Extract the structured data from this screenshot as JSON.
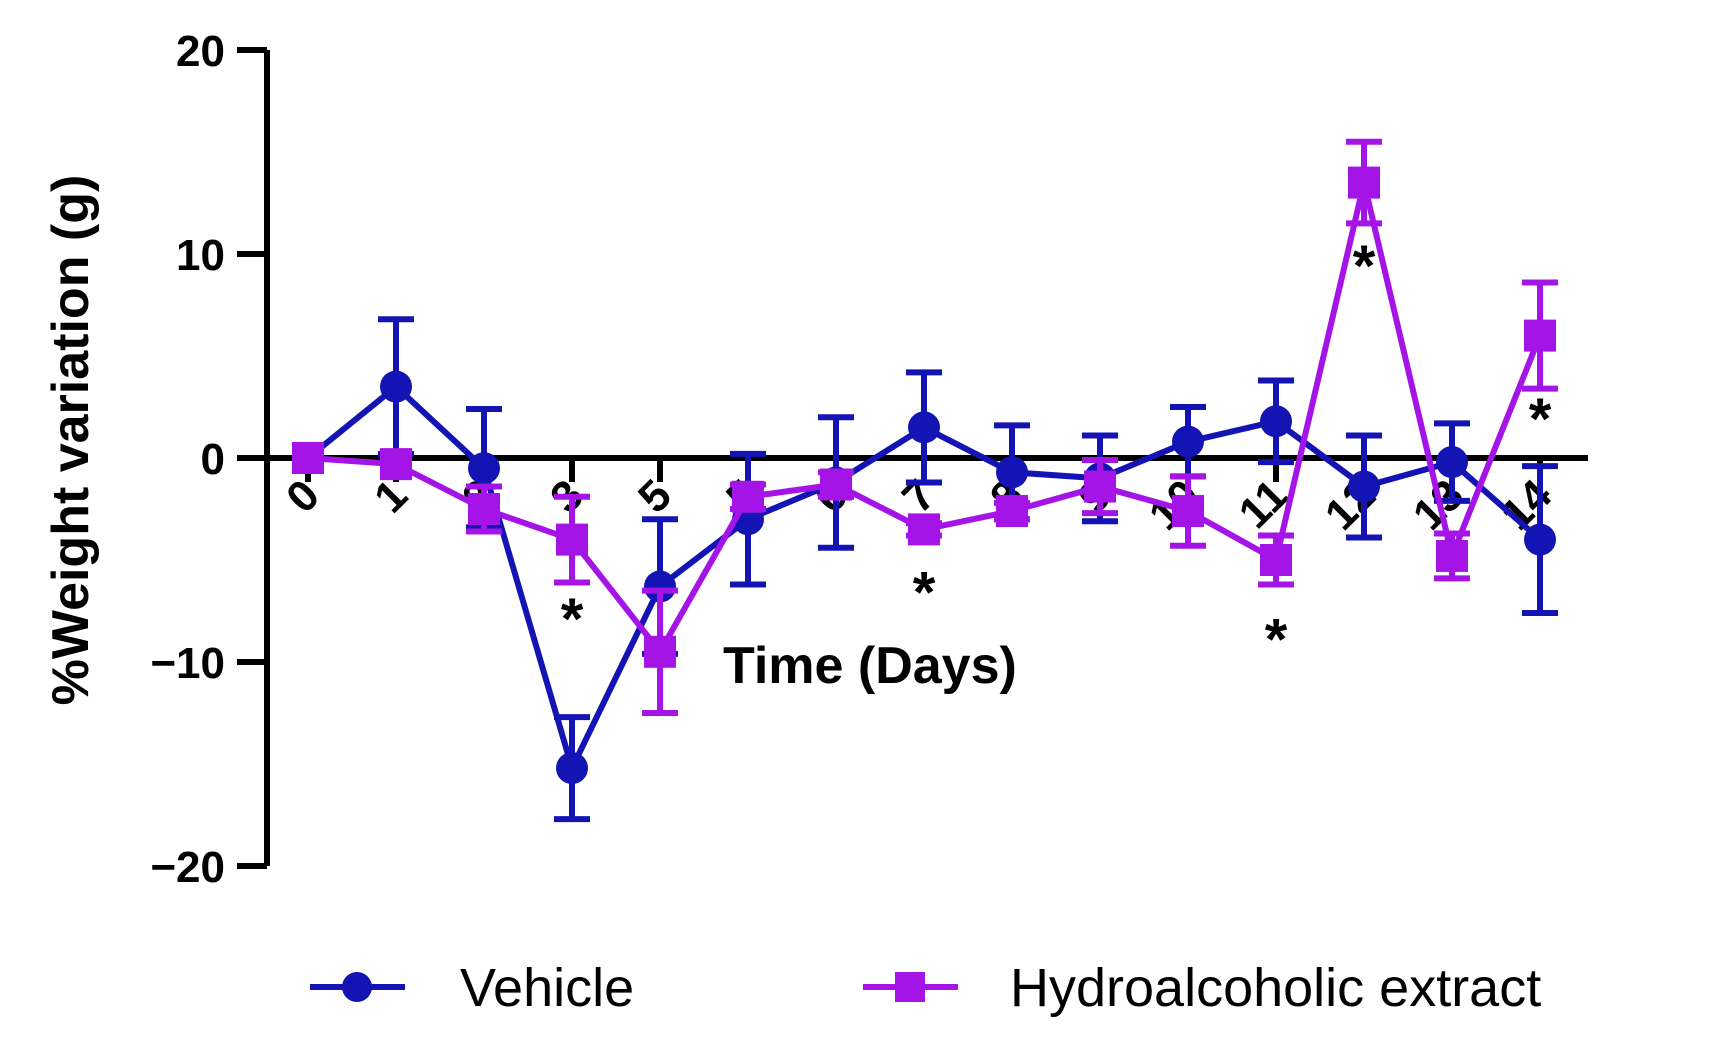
{
  "chart_data": {
    "type": "line",
    "xlabel": "Time (Days)",
    "ylabel": "%Weight variation (g)",
    "ylim": [
      -20,
      20
    ],
    "yticks": [
      -20,
      -10,
      0,
      10,
      20
    ],
    "ytick_labels": [
      "−20",
      "−10",
      "0",
      "10",
      "20"
    ],
    "x": [
      0,
      1,
      2,
      3,
      5,
      5,
      6,
      7,
      8,
      9,
      10,
      11,
      12,
      13,
      14
    ],
    "x_labels": [
      "0",
      "1",
      "2",
      "3",
      "5",
      "5",
      "6",
      "7",
      "8",
      "9",
      "10",
      "11",
      "12",
      "13",
      "14"
    ],
    "series": [
      {
        "name": "Vehicle",
        "color": "#1414b4",
        "marker": "circle",
        "values": [
          0,
          3.5,
          -0.5,
          -15.2,
          -6.3,
          -3,
          -1.2,
          1.5,
          -0.7,
          -1,
          0.8,
          1.8,
          -1.4,
          -0.2,
          -4
        ],
        "errors": [
          0,
          3.3,
          2.9,
          2.5,
          3.3,
          3.2,
          3.2,
          2.7,
          2.3,
          2.1,
          1.7,
          2,
          2.5,
          1.9,
          3.6
        ]
      },
      {
        "name": "Hydroalcoholic extract",
        "color": "#a514e6",
        "marker": "square",
        "values": [
          0,
          -0.3,
          -2.5,
          -4,
          -9.5,
          -1.9,
          -1.3,
          -3.5,
          -2.6,
          -1.4,
          -2.6,
          -5,
          13.5,
          -4.8,
          6
        ],
        "errors": [
          0,
          0,
          1.1,
          2.1,
          3,
          0.6,
          0.6,
          0.3,
          0.4,
          1.3,
          1.7,
          1.2,
          2,
          1.1,
          2.6
        ]
      }
    ],
    "annotations": [
      {
        "text": "*",
        "x_index": 3,
        "y": -7.5
      },
      {
        "text": "*",
        "x_index": 7,
        "y": -6.2
      },
      {
        "text": "*",
        "x_index": 11,
        "y": -8.5
      },
      {
        "text": "*",
        "x_index": 12,
        "y": 9.8
      },
      {
        "text": "*",
        "x_index": 14,
        "y": 2.3
      }
    ],
    "legend": "bottom",
    "grid": false
  }
}
